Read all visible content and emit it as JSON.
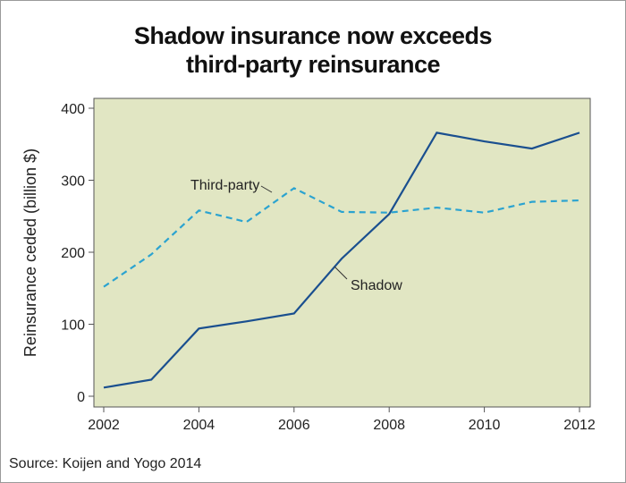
{
  "chart_data": {
    "type": "line",
    "title_line1": "Shadow insurance now exceeds",
    "title_line2": "third-party reinsurance",
    "xlabel": "",
    "ylabel": "Reinsurance ceded (billion $)",
    "xlim": [
      2002,
      2012
    ],
    "ylim": [
      0,
      400
    ],
    "xticks": [
      "2002",
      "2004",
      "2006",
      "2008",
      "2010",
      "2012"
    ],
    "yticks": [
      "0",
      "100",
      "200",
      "300",
      "400"
    ],
    "grid": false,
    "x": [
      2002,
      2003,
      2004,
      2005,
      2006,
      2007,
      2008,
      2009,
      2010,
      2011,
      2012
    ],
    "series": [
      {
        "name": "Shadow",
        "style": "solid",
        "color": "#1a4f8f",
        "values": [
          12,
          23,
          94,
          104,
          115,
          191,
          253,
          366,
          354,
          344,
          366
        ]
      },
      {
        "name": "Third-party",
        "style": "dashed",
        "color": "#2ba3d0",
        "values": [
          152,
          197,
          258,
          242,
          289,
          256,
          255,
          262,
          255,
          270,
          272
        ]
      }
    ],
    "annotations": [
      "Third-party",
      "Shadow"
    ],
    "background": "#e1e6c3"
  },
  "source": "Source: Koijen and Yogo 2014"
}
